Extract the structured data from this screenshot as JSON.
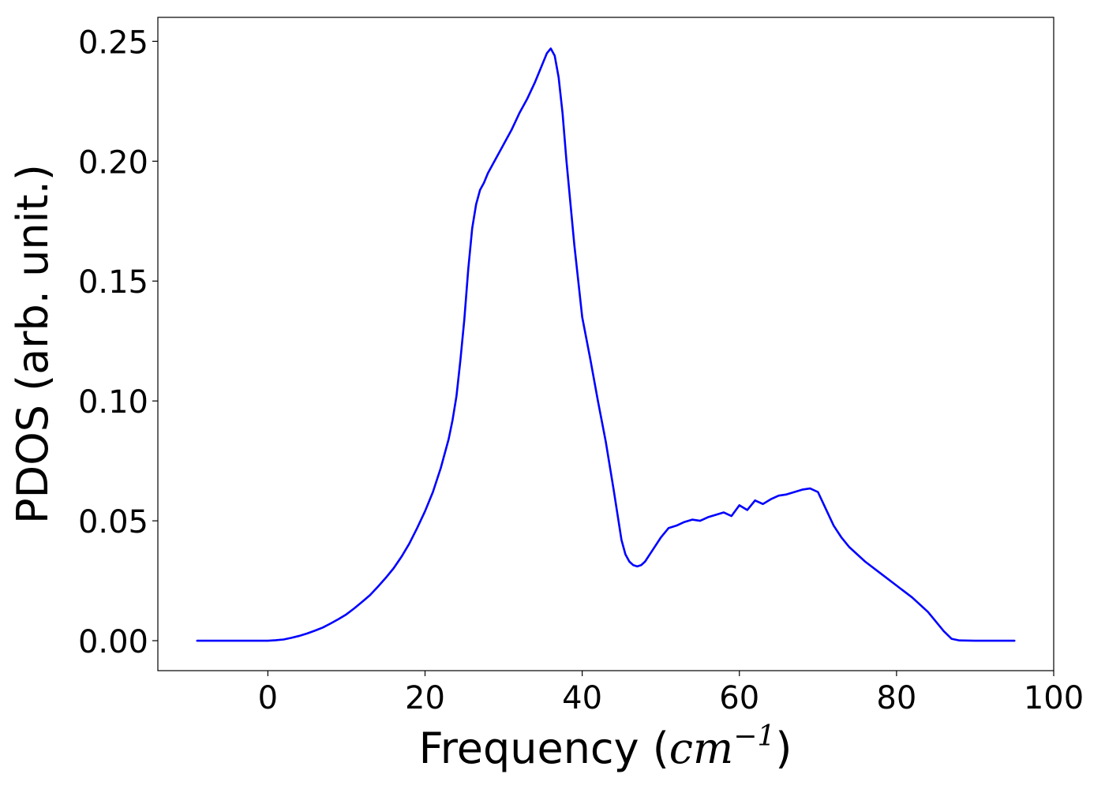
{
  "chart_data": {
    "type": "line",
    "xlabel": {
      "prefix": "Frequency (",
      "math_base": "cm",
      "math_sup": "−1",
      "suffix": ")"
    },
    "ylabel": "PDOS (arb. unit.)",
    "xlim": [
      -14,
      100
    ],
    "ylim": [
      -0.0125,
      0.26
    ],
    "x_ticks": [
      0,
      20,
      40,
      60,
      80,
      100
    ],
    "x_tick_labels": [
      "0",
      "20",
      "40",
      "60",
      "80",
      "100"
    ],
    "y_ticks": [
      0.0,
      0.05,
      0.1,
      0.15,
      0.2,
      0.25
    ],
    "y_tick_labels": [
      "0.00",
      "0.05",
      "0.10",
      "0.15",
      "0.20",
      "0.25"
    ],
    "grid": false,
    "line_color": "#0000ff",
    "series": [
      {
        "x": [
          -9,
          -6,
          -3,
          -1,
          0,
          1,
          2,
          3,
          4,
          5,
          6,
          7,
          8,
          9,
          10,
          11,
          12,
          13,
          14,
          15,
          16,
          17,
          18,
          19,
          20,
          21,
          22,
          23,
          23.5,
          24,
          24.5,
          25,
          25.5,
          26,
          26.5,
          27,
          27.5,
          28,
          29,
          30,
          31,
          32,
          33,
          34,
          35,
          35.5,
          36,
          36.5,
          37,
          37.5,
          38,
          39,
          40,
          41,
          42,
          43,
          44,
          45,
          45.5,
          46,
          46.5,
          47,
          47.5,
          48,
          49,
          50,
          51,
          52,
          53,
          54,
          55,
          56,
          57,
          58,
          59,
          60,
          61,
          62,
          63,
          64,
          65,
          66,
          67,
          68,
          69,
          70,
          71,
          72,
          73,
          74,
          76,
          78,
          80,
          82,
          84,
          85,
          86,
          87,
          88,
          90,
          92,
          95
        ],
        "y": [
          0.0,
          0.0,
          0.0,
          0.0,
          0.0,
          0.0002,
          0.0005,
          0.0012,
          0.002,
          0.003,
          0.0042,
          0.0055,
          0.0072,
          0.009,
          0.011,
          0.0135,
          0.0162,
          0.019,
          0.0225,
          0.0262,
          0.0302,
          0.035,
          0.0405,
          0.047,
          0.054,
          0.062,
          0.072,
          0.084,
          0.092,
          0.102,
          0.117,
          0.134,
          0.155,
          0.172,
          0.182,
          0.188,
          0.191,
          0.195,
          0.201,
          0.207,
          0.213,
          0.22,
          0.226,
          0.233,
          0.241,
          0.245,
          0.247,
          0.244,
          0.235,
          0.22,
          0.2,
          0.165,
          0.135,
          0.118,
          0.1,
          0.083,
          0.063,
          0.042,
          0.036,
          0.033,
          0.0315,
          0.031,
          0.0315,
          0.033,
          0.038,
          0.043,
          0.047,
          0.048,
          0.0495,
          0.0505,
          0.05,
          0.0515,
          0.0525,
          0.0535,
          0.052,
          0.0565,
          0.0545,
          0.0585,
          0.057,
          0.059,
          0.0605,
          0.061,
          0.062,
          0.063,
          0.0635,
          0.062,
          0.055,
          0.048,
          0.043,
          0.039,
          0.033,
          0.028,
          0.023,
          0.018,
          0.012,
          0.008,
          0.004,
          0.0008,
          0.0001,
          0.0,
          0.0,
          0.0
        ]
      }
    ]
  }
}
